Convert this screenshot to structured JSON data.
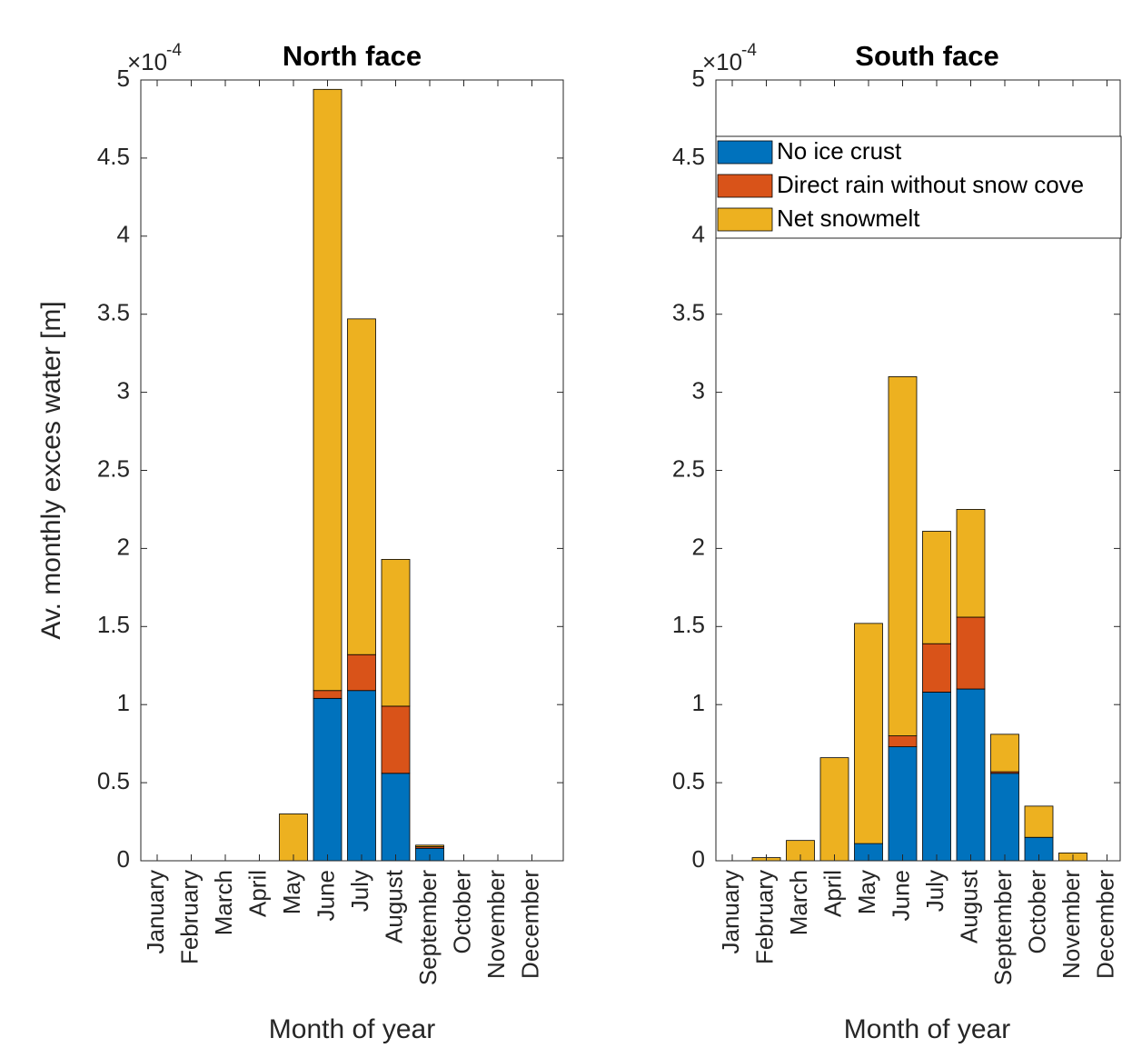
{
  "chart_data": [
    {
      "type": "bar",
      "stacked": true,
      "title": "North face",
      "xlabel": "Month of year",
      "ylabel": "Av. monthly exces water [m]",
      "y_multiplier": {
        "base": "×10",
        "exponent": "-4"
      },
      "categories": [
        "January",
        "February",
        "March",
        "April",
        "May",
        "June",
        "July",
        "August",
        "September",
        "October",
        "November",
        "December"
      ],
      "series": [
        {
          "name": "No ice crust",
          "color": "#0072bd",
          "values": [
            0,
            0,
            0,
            0,
            0,
            1.04,
            1.09,
            0.56,
            0.08,
            0,
            0,
            0
          ]
        },
        {
          "name": "Direct rain without snow cove",
          "color": "#d95319",
          "values": [
            0,
            0,
            0,
            0,
            0,
            0.05,
            0.23,
            0.43,
            0.01,
            0,
            0,
            0
          ]
        },
        {
          "name": "Net snowmelt",
          "color": "#edb120",
          "values": [
            0,
            0,
            0,
            0,
            0.3,
            3.85,
            2.15,
            0.94,
            0.01,
            0,
            0,
            0
          ]
        }
      ],
      "ylim": [
        0,
        5
      ],
      "yticks": [
        0,
        0.5,
        1,
        1.5,
        2,
        2.5,
        3,
        3.5,
        4,
        4.5,
        5
      ],
      "legend": false
    },
    {
      "type": "bar",
      "stacked": true,
      "title": "South face",
      "xlabel": "Month of year",
      "y_multiplier": {
        "base": "×10",
        "exponent": "-4"
      },
      "categories": [
        "January",
        "February",
        "March",
        "April",
        "May",
        "June",
        "July",
        "August",
        "September",
        "October",
        "November",
        "December"
      ],
      "series": [
        {
          "name": "No ice crust",
          "color": "#0072bd",
          "values": [
            0,
            0,
            0,
            0,
            0.11,
            0.73,
            1.08,
            1.1,
            0.56,
            0.15,
            0,
            0
          ]
        },
        {
          "name": "Direct rain without snow cove",
          "color": "#d95319",
          "values": [
            0,
            0,
            0,
            0,
            0,
            0.07,
            0.31,
            0.46,
            0.01,
            0,
            0,
            0
          ]
        },
        {
          "name": "Net snowmelt",
          "color": "#edb120",
          "values": [
            0,
            0.02,
            0.13,
            0.66,
            1.41,
            2.3,
            0.72,
            0.69,
            0.24,
            0.2,
            0.05,
            0
          ]
        }
      ],
      "ylim": [
        0,
        5
      ],
      "yticks": [
        0,
        0.5,
        1,
        1.5,
        2,
        2.5,
        3,
        3.5,
        4,
        4.5,
        5
      ],
      "legend": true,
      "legend_loc": "upper left"
    }
  ]
}
